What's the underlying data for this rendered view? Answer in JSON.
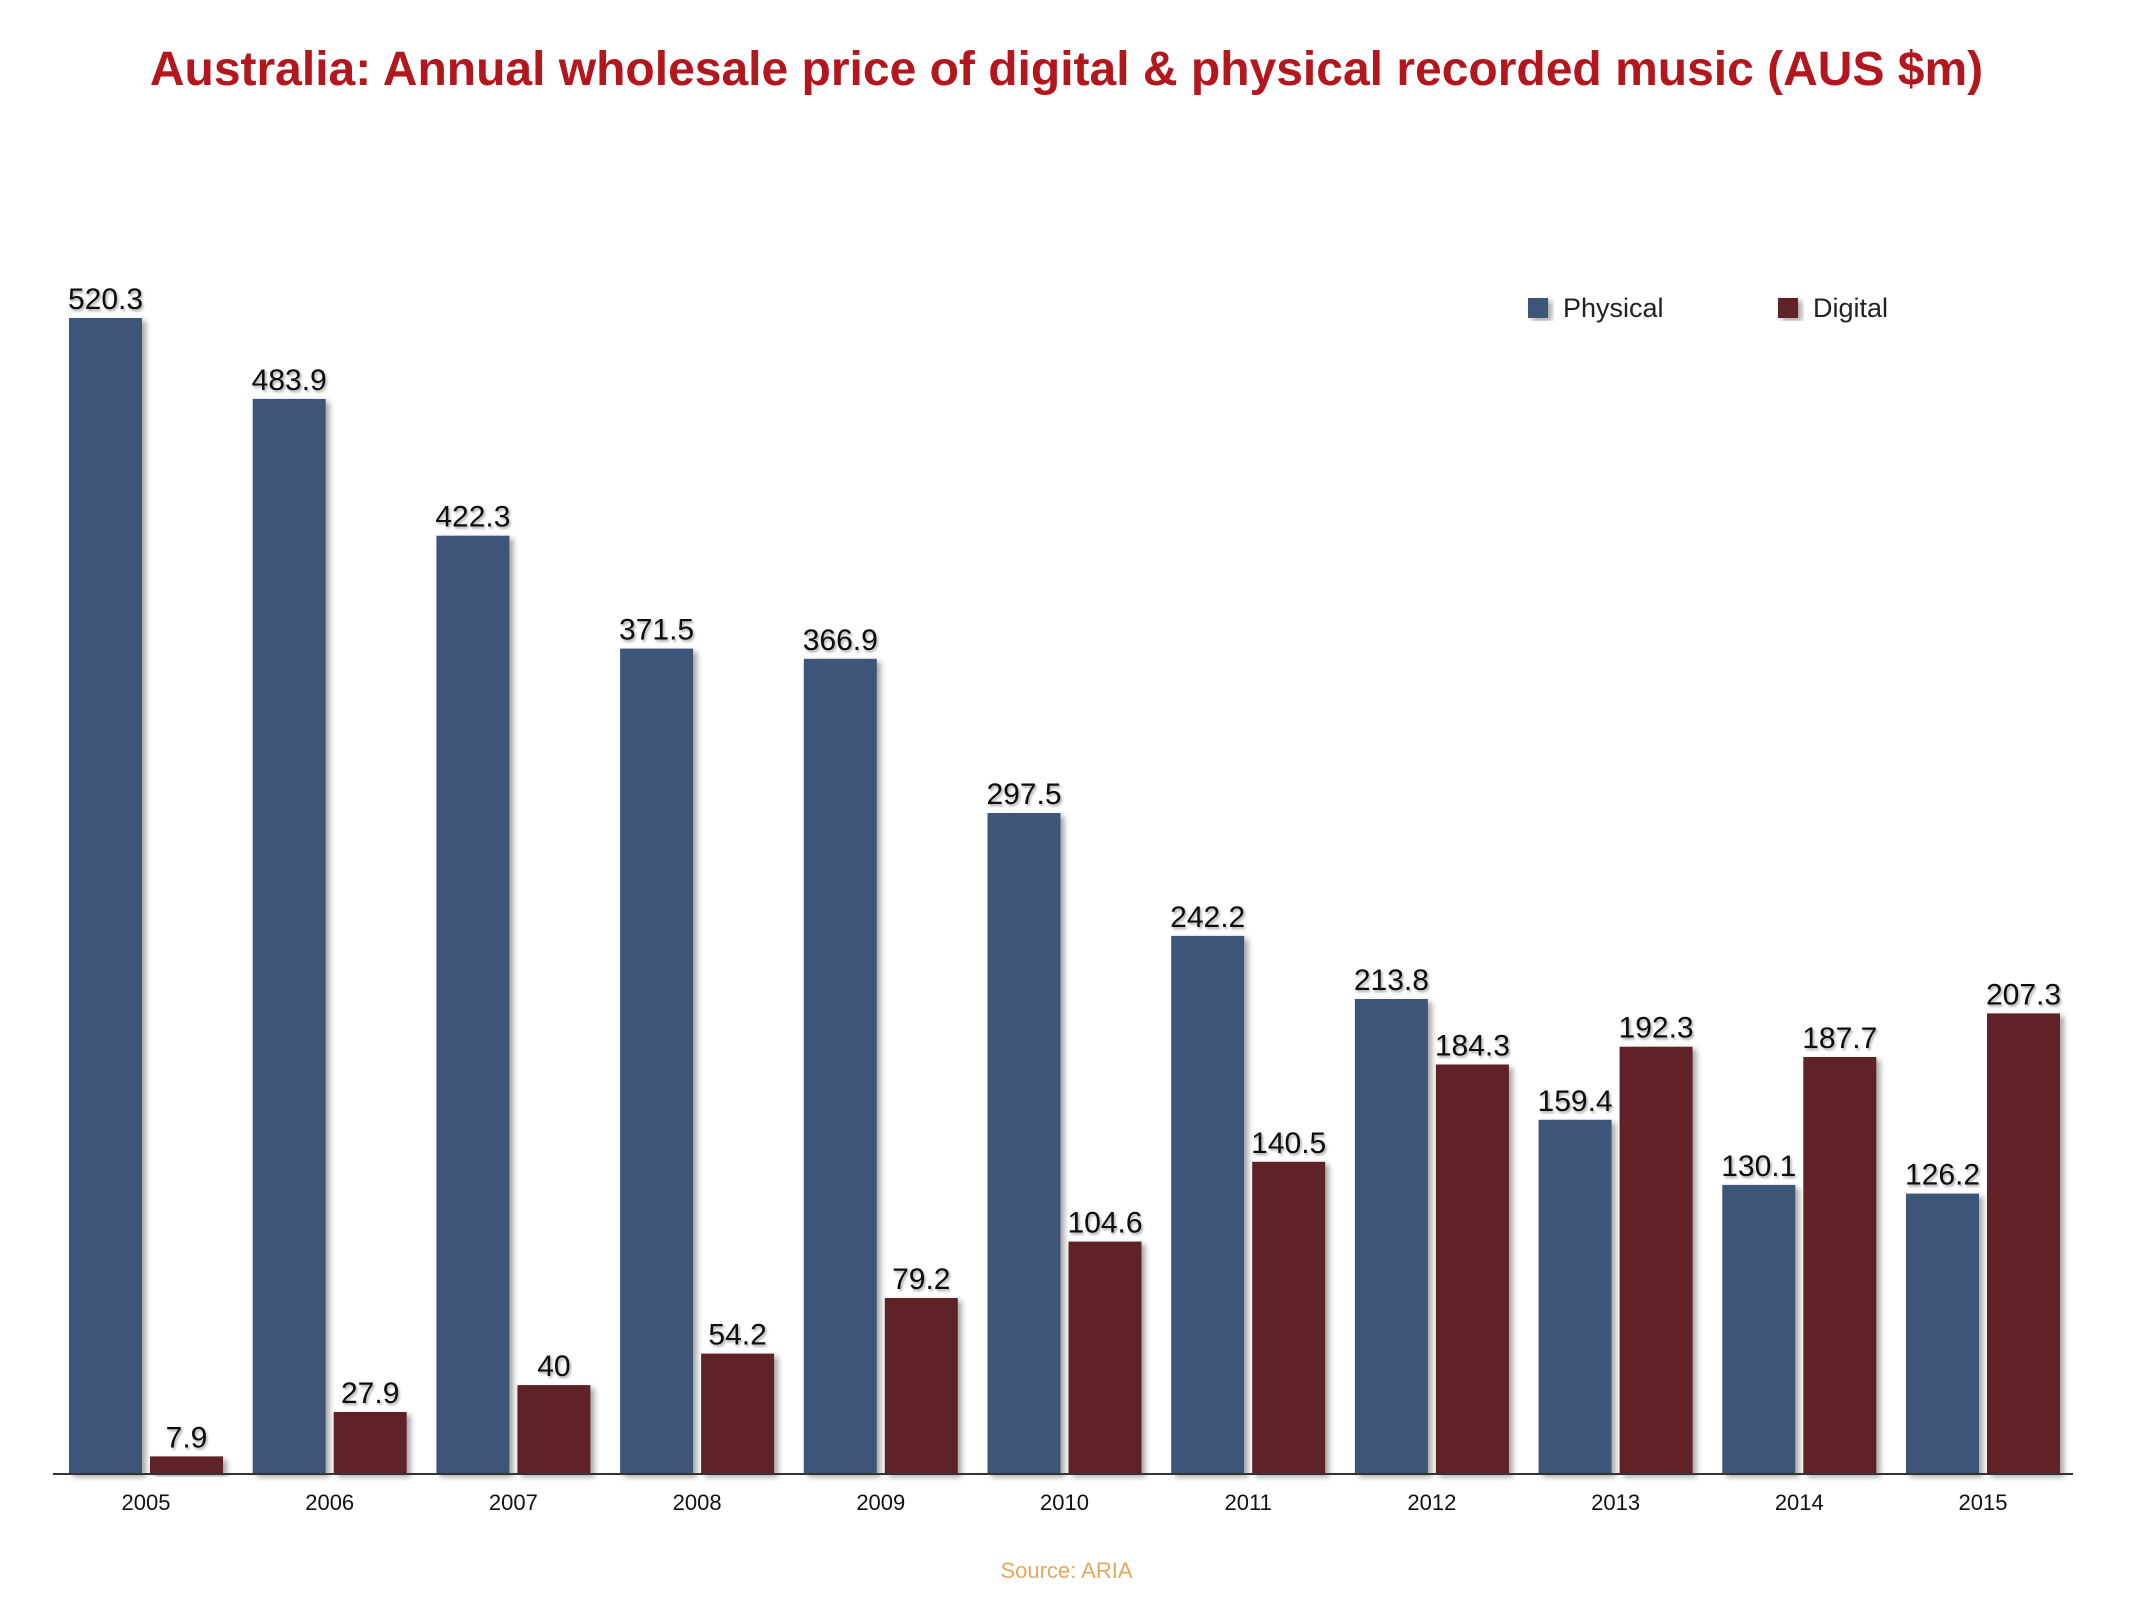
{
  "chart_data": {
    "type": "bar",
    "title": "Australia: Annual wholesale price of digital & physical recorded music (AUS $m)",
    "source": "Source: ARIA",
    "categories": [
      "2005",
      "2006",
      "2007",
      "2008",
      "2009",
      "2010",
      "2011",
      "2012",
      "2013",
      "2014",
      "2015"
    ],
    "series": [
      {
        "name": "Physical",
        "color": "#3d5478",
        "values": [
          520.3,
          483.9,
          422.3,
          371.5,
          366.9,
          297.5,
          242.2,
          213.8,
          159.4,
          130.1,
          126.2
        ]
      },
      {
        "name": "Digital",
        "color": "#5e2327",
        "values": [
          7.9,
          27.9,
          40,
          54.2,
          79.2,
          104.6,
          140.5,
          184.3,
          192.3,
          187.7,
          207.3
        ]
      }
    ],
    "data_labels": true,
    "ylim": [
      0,
      520.3
    ],
    "grid": false,
    "legend_position": "top-right",
    "xlabel": "",
    "ylabel": ""
  }
}
